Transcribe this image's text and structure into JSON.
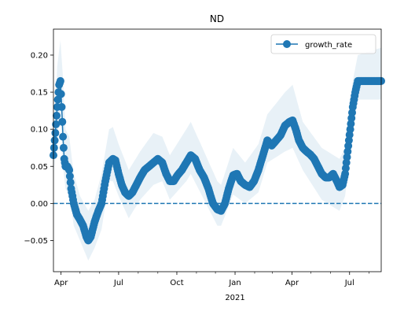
{
  "chart_data": {
    "type": "line",
    "title": "ND",
    "xlabel": "",
    "ylabel": "",
    "x_range": [
      "2020-03-20",
      "2021-08-20"
    ],
    "ylim": [
      -0.092,
      0.235
    ],
    "y_ticks": [
      -0.05,
      0.0,
      0.05,
      0.1,
      0.15,
      0.2
    ],
    "y_tick_labels": [
      "−0.05",
      "0.00",
      "0.05",
      "0.10",
      "0.15",
      "0.20"
    ],
    "x_ticks": [
      {
        "date": "2020-04-01",
        "label": "Apr"
      },
      {
        "date": "2020-07-01",
        "label": "Jul"
      },
      {
        "date": "2020-10-01",
        "label": "Oct"
      },
      {
        "date": "2021-01-01",
        "label": "Jan",
        "sublabel": "2021"
      },
      {
        "date": "2021-04-01",
        "label": "Apr"
      },
      {
        "date": "2021-07-01",
        "label": "Jul"
      }
    ],
    "x_minor_ticks": [
      "2020-05-01",
      "2020-06-01",
      "2020-08-01",
      "2020-09-01",
      "2020-11-01",
      "2020-12-01",
      "2021-02-01",
      "2021-03-01",
      "2021-05-01",
      "2021-06-01",
      "2021-08-01"
    ],
    "reference_line": {
      "y": 0.0,
      "style": "dashed",
      "color": "#1f77b4"
    },
    "legend": {
      "position": "top-right",
      "entries": [
        "growth_rate"
      ]
    },
    "colors": {
      "series": "#1f77b4",
      "band": "#1f77b4"
    },
    "series": [
      {
        "name": "growth_rate",
        "keypoints": [
          [
            "2020-03-20",
            0.065
          ],
          [
            "2020-03-23",
            0.095
          ],
          [
            "2020-03-26",
            0.13
          ],
          [
            "2020-03-29",
            0.16
          ],
          [
            "2020-03-31",
            0.165
          ],
          [
            "2020-04-02",
            0.13
          ],
          [
            "2020-04-04",
            0.09
          ],
          [
            "2020-04-06",
            0.06
          ],
          [
            "2020-04-08",
            0.05
          ],
          [
            "2020-04-11",
            0.05
          ],
          [
            "2020-04-14",
            0.045
          ],
          [
            "2020-04-17",
            0.02
          ],
          [
            "2020-04-21",
            0.0
          ],
          [
            "2020-04-26",
            -0.015
          ],
          [
            "2020-05-01",
            -0.022
          ],
          [
            "2020-05-06",
            -0.03
          ],
          [
            "2020-05-11",
            -0.045
          ],
          [
            "2020-05-14",
            -0.05
          ],
          [
            "2020-05-18",
            -0.045
          ],
          [
            "2020-05-24",
            -0.025
          ],
          [
            "2020-05-30",
            -0.01
          ],
          [
            "2020-06-04",
            0.0
          ],
          [
            "2020-06-10",
            0.03
          ],
          [
            "2020-06-16",
            0.055
          ],
          [
            "2020-06-22",
            0.06
          ],
          [
            "2020-06-26",
            0.058
          ],
          [
            "2020-07-01",
            0.04
          ],
          [
            "2020-07-06",
            0.025
          ],
          [
            "2020-07-11",
            0.015
          ],
          [
            "2020-07-17",
            0.01
          ],
          [
            "2020-07-23",
            0.015
          ],
          [
            "2020-07-29",
            0.025
          ],
          [
            "2020-08-04",
            0.035
          ],
          [
            "2020-08-11",
            0.045
          ],
          [
            "2020-08-18",
            0.05
          ],
          [
            "2020-08-25",
            0.055
          ],
          [
            "2020-09-01",
            0.06
          ],
          [
            "2020-09-08",
            0.055
          ],
          [
            "2020-09-14",
            0.04
          ],
          [
            "2020-09-20",
            0.03
          ],
          [
            "2020-09-26",
            0.03
          ],
          [
            "2020-10-02",
            0.038
          ],
          [
            "2020-10-09",
            0.045
          ],
          [
            "2020-10-16",
            0.055
          ],
          [
            "2020-10-23",
            0.065
          ],
          [
            "2020-10-30",
            0.06
          ],
          [
            "2020-11-06",
            0.045
          ],
          [
            "2020-11-13",
            0.035
          ],
          [
            "2020-11-20",
            0.02
          ],
          [
            "2020-11-27",
            0.0
          ],
          [
            "2020-12-04",
            -0.008
          ],
          [
            "2020-12-10",
            -0.01
          ],
          [
            "2020-12-16",
            0.0
          ],
          [
            "2020-12-22",
            0.02
          ],
          [
            "2020-12-29",
            0.038
          ],
          [
            "2021-01-04",
            0.04
          ],
          [
            "2021-01-10",
            0.03
          ],
          [
            "2021-01-17",
            0.025
          ],
          [
            "2021-01-24",
            0.022
          ],
          [
            "2021-01-31",
            0.03
          ],
          [
            "2021-02-07",
            0.045
          ],
          [
            "2021-02-14",
            0.065
          ],
          [
            "2021-02-21",
            0.085
          ],
          [
            "2021-02-28",
            0.078
          ],
          [
            "2021-03-07",
            0.085
          ],
          [
            "2021-03-14",
            0.092
          ],
          [
            "2021-03-21",
            0.105
          ],
          [
            "2021-03-28",
            0.11
          ],
          [
            "2021-04-02",
            0.112
          ],
          [
            "2021-04-07",
            0.1
          ],
          [
            "2021-04-12",
            0.085
          ],
          [
            "2021-04-18",
            0.075
          ],
          [
            "2021-04-24",
            0.07
          ],
          [
            "2021-04-30",
            0.066
          ],
          [
            "2021-05-06",
            0.06
          ],
          [
            "2021-05-12",
            0.05
          ],
          [
            "2021-05-18",
            0.04
          ],
          [
            "2021-05-24",
            0.035
          ],
          [
            "2021-05-30",
            0.035
          ],
          [
            "2021-06-05",
            0.04
          ],
          [
            "2021-06-11",
            0.03
          ],
          [
            "2021-06-15",
            0.022
          ],
          [
            "2021-06-20",
            0.025
          ],
          [
            "2021-06-24",
            0.04
          ],
          [
            "2021-06-28",
            0.07
          ],
          [
            "2021-07-02",
            0.1
          ],
          [
            "2021-07-06",
            0.13
          ],
          [
            "2021-07-10",
            0.15
          ],
          [
            "2021-07-14",
            0.165
          ],
          [
            "2021-08-20",
            0.165
          ]
        ]
      }
    ],
    "confidence_band": {
      "keypoints": [
        [
          "2020-03-20",
          0.04,
          0.085
        ],
        [
          "2020-03-26",
          0.09,
          0.185
        ],
        [
          "2020-03-31",
          0.12,
          0.22
        ],
        [
          "2020-04-04",
          0.05,
          0.17
        ],
        [
          "2020-04-08",
          0.02,
          0.1
        ],
        [
          "2020-04-14",
          0.01,
          0.09
        ],
        [
          "2020-04-21",
          -0.03,
          0.04
        ],
        [
          "2020-05-01",
          -0.05,
          0.01
        ],
        [
          "2020-05-14",
          -0.077,
          -0.01
        ],
        [
          "2020-05-24",
          -0.06,
          0.005
        ],
        [
          "2020-06-04",
          -0.035,
          0.04
        ],
        [
          "2020-06-16",
          0.03,
          0.1
        ],
        [
          "2020-06-22",
          0.03,
          0.103
        ],
        [
          "2020-07-01",
          0.01,
          0.08
        ],
        [
          "2020-07-17",
          -0.02,
          0.045
        ],
        [
          "2020-08-04",
          0.005,
          0.07
        ],
        [
          "2020-08-25",
          0.025,
          0.095
        ],
        [
          "2020-09-08",
          0.03,
          0.09
        ],
        [
          "2020-09-20",
          0.005,
          0.065
        ],
        [
          "2020-10-16",
          0.03,
          0.1
        ],
        [
          "2020-10-23",
          0.04,
          0.11
        ],
        [
          "2020-11-13",
          0.005,
          0.07
        ],
        [
          "2020-12-04",
          -0.03,
          0.03
        ],
        [
          "2020-12-10",
          -0.03,
          0.025
        ],
        [
          "2020-12-29",
          0.012,
          0.075
        ],
        [
          "2021-01-17",
          0.0,
          0.055
        ],
        [
          "2021-02-07",
          0.015,
          0.08
        ],
        [
          "2021-02-21",
          0.055,
          0.12
        ],
        [
          "2021-03-21",
          0.07,
          0.15
        ],
        [
          "2021-04-02",
          0.075,
          0.16
        ],
        [
          "2021-04-18",
          0.045,
          0.11
        ],
        [
          "2021-05-18",
          0.005,
          0.075
        ],
        [
          "2021-06-15",
          -0.01,
          0.06
        ],
        [
          "2021-06-24",
          0.01,
          0.075
        ],
        [
          "2021-07-06",
          0.1,
          0.165
        ],
        [
          "2021-07-14",
          0.14,
          0.2
        ],
        [
          "2021-08-20",
          0.14,
          0.21
        ]
      ]
    }
  }
}
